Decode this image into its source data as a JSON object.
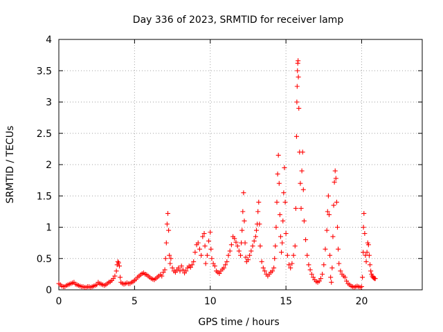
{
  "chart_data": {
    "type": "scatter",
    "title": "Day 336 of 2023, SRMTID for receiver lamp",
    "xlabel": "GPS time / hours",
    "ylabel": "SRMTID / TECUs",
    "xlim": [
      0,
      24
    ],
    "ylim": [
      0,
      4
    ],
    "xticks": [
      0,
      5,
      10,
      15,
      20
    ],
    "yticks": [
      0,
      0.5,
      1,
      1.5,
      2,
      2.5,
      3,
      3.5,
      4
    ],
    "xtick_labels": [
      "0",
      "5",
      "10",
      "15",
      "20"
    ],
    "ytick_labels": [
      "0",
      "0.5",
      "1",
      "1.5",
      "2",
      "2.5",
      "3",
      "3.5",
      "4"
    ],
    "grid": true,
    "marker": "plus",
    "color": "#ff0000",
    "series": [
      {
        "name": "SRMTID",
        "points": [
          [
            0.0,
            0.1
          ],
          [
            0.1,
            0.08
          ],
          [
            0.2,
            0.06
          ],
          [
            0.3,
            0.05
          ],
          [
            0.4,
            0.05
          ],
          [
            0.5,
            0.07
          ],
          [
            0.6,
            0.08
          ],
          [
            0.7,
            0.09
          ],
          [
            0.8,
            0.1
          ],
          [
            0.9,
            0.11
          ],
          [
            1.0,
            0.12
          ],
          [
            1.1,
            0.09
          ],
          [
            1.2,
            0.08
          ],
          [
            1.3,
            0.07
          ],
          [
            1.4,
            0.06
          ],
          [
            1.5,
            0.05
          ],
          [
            1.6,
            0.05
          ],
          [
            1.7,
            0.04
          ],
          [
            1.8,
            0.04
          ],
          [
            1.9,
            0.05
          ],
          [
            2.0,
            0.05
          ],
          [
            2.1,
            0.04
          ],
          [
            2.2,
            0.05
          ],
          [
            2.3,
            0.06
          ],
          [
            2.4,
            0.07
          ],
          [
            2.5,
            0.08
          ],
          [
            2.6,
            0.12
          ],
          [
            2.7,
            0.1
          ],
          [
            2.8,
            0.09
          ],
          [
            2.9,
            0.08
          ],
          [
            3.0,
            0.07
          ],
          [
            3.1,
            0.08
          ],
          [
            3.2,
            0.1
          ],
          [
            3.3,
            0.12
          ],
          [
            3.4,
            0.13
          ],
          [
            3.5,
            0.15
          ],
          [
            3.6,
            0.18
          ],
          [
            3.7,
            0.22
          ],
          [
            3.8,
            0.3
          ],
          [
            3.85,
            0.4
          ],
          [
            3.9,
            0.45
          ],
          [
            3.95,
            0.43
          ],
          [
            4.0,
            0.38
          ],
          [
            4.05,
            0.2
          ],
          [
            4.1,
            0.12
          ],
          [
            4.2,
            0.1
          ],
          [
            4.3,
            0.09
          ],
          [
            4.4,
            0.1
          ],
          [
            4.5,
            0.11
          ],
          [
            4.6,
            0.1
          ],
          [
            4.7,
            0.1
          ],
          [
            4.8,
            0.12
          ],
          [
            4.9,
            0.13
          ],
          [
            5.0,
            0.15
          ],
          [
            5.1,
            0.17
          ],
          [
            5.2,
            0.2
          ],
          [
            5.3,
            0.22
          ],
          [
            5.4,
            0.24
          ],
          [
            5.5,
            0.26
          ],
          [
            5.6,
            0.27
          ],
          [
            5.7,
            0.25
          ],
          [
            5.8,
            0.24
          ],
          [
            5.9,
            0.22
          ],
          [
            6.0,
            0.2
          ],
          [
            6.1,
            0.18
          ],
          [
            6.2,
            0.17
          ],
          [
            6.3,
            0.16
          ],
          [
            6.4,
            0.18
          ],
          [
            6.5,
            0.2
          ],
          [
            6.6,
            0.22
          ],
          [
            6.7,
            0.24
          ],
          [
            6.8,
            0.22
          ],
          [
            6.9,
            0.28
          ],
          [
            7.0,
            0.32
          ],
          [
            7.05,
            0.5
          ],
          [
            7.1,
            0.75
          ],
          [
            7.15,
            1.05
          ],
          [
            7.2,
            1.22
          ],
          [
            7.25,
            0.95
          ],
          [
            7.3,
            0.55
          ],
          [
            7.35,
            0.42
          ],
          [
            7.4,
            0.5
          ],
          [
            7.5,
            0.35
          ],
          [
            7.6,
            0.3
          ],
          [
            7.7,
            0.28
          ],
          [
            7.8,
            0.32
          ],
          [
            7.9,
            0.35
          ],
          [
            8.0,
            0.3
          ],
          [
            8.1,
            0.38
          ],
          [
            8.2,
            0.32
          ],
          [
            8.3,
            0.27
          ],
          [
            8.4,
            0.3
          ],
          [
            8.5,
            0.35
          ],
          [
            8.6,
            0.38
          ],
          [
            8.7,
            0.36
          ],
          [
            8.8,
            0.4
          ],
          [
            8.9,
            0.45
          ],
          [
            9.0,
            0.6
          ],
          [
            9.1,
            0.72
          ],
          [
            9.2,
            0.75
          ],
          [
            9.3,
            0.65
          ],
          [
            9.4,
            0.55
          ],
          [
            9.5,
            0.85
          ],
          [
            9.6,
            0.9
          ],
          [
            9.65,
            0.7
          ],
          [
            9.7,
            0.42
          ],
          [
            9.8,
            0.55
          ],
          [
            9.9,
            0.78
          ],
          [
            10.0,
            0.92
          ],
          [
            10.05,
            0.65
          ],
          [
            10.1,
            0.5
          ],
          [
            10.2,
            0.42
          ],
          [
            10.3,
            0.38
          ],
          [
            10.4,
            0.3
          ],
          [
            10.5,
            0.28
          ],
          [
            10.6,
            0.26
          ],
          [
            10.7,
            0.3
          ],
          [
            10.8,
            0.33
          ],
          [
            10.9,
            0.35
          ],
          [
            11.0,
            0.4
          ],
          [
            11.1,
            0.45
          ],
          [
            11.2,
            0.55
          ],
          [
            11.3,
            0.62
          ],
          [
            11.4,
            0.72
          ],
          [
            11.5,
            0.85
          ],
          [
            11.6,
            0.82
          ],
          [
            11.7,
            0.76
          ],
          [
            11.8,
            0.7
          ],
          [
            11.9,
            0.62
          ],
          [
            12.0,
            0.55
          ],
          [
            12.05,
            0.75
          ],
          [
            12.1,
            0.95
          ],
          [
            12.15,
            1.25
          ],
          [
            12.2,
            1.55
          ],
          [
            12.25,
            1.1
          ],
          [
            12.3,
            0.75
          ],
          [
            12.35,
            0.52
          ],
          [
            12.4,
            0.45
          ],
          [
            12.5,
            0.48
          ],
          [
            12.6,
            0.55
          ],
          [
            12.7,
            0.62
          ],
          [
            12.8,
            0.7
          ],
          [
            12.9,
            0.78
          ],
          [
            13.0,
            0.85
          ],
          [
            13.05,
            0.95
          ],
          [
            13.1,
            1.05
          ],
          [
            13.15,
            1.25
          ],
          [
            13.2,
            1.4
          ],
          [
            13.25,
            1.05
          ],
          [
            13.3,
            0.7
          ],
          [
            13.4,
            0.45
          ],
          [
            13.5,
            0.35
          ],
          [
            13.6,
            0.3
          ],
          [
            13.7,
            0.25
          ],
          [
            13.8,
            0.22
          ],
          [
            13.9,
            0.25
          ],
          [
            14.0,
            0.28
          ],
          [
            14.1,
            0.3
          ],
          [
            14.2,
            0.35
          ],
          [
            14.25,
            0.5
          ],
          [
            14.3,
            0.7
          ],
          [
            14.35,
            1.0
          ],
          [
            14.4,
            1.4
          ],
          [
            14.45,
            1.85
          ],
          [
            14.5,
            2.15
          ],
          [
            14.55,
            1.7
          ],
          [
            14.6,
            1.2
          ],
          [
            14.65,
            0.85
          ],
          [
            14.7,
            0.6
          ],
          [
            14.75,
            0.75
          ],
          [
            14.8,
            1.1
          ],
          [
            14.85,
            1.55
          ],
          [
            14.9,
            1.95
          ],
          [
            14.95,
            1.4
          ],
          [
            15.0,
            0.9
          ],
          [
            15.1,
            0.55
          ],
          [
            15.2,
            0.4
          ],
          [
            15.3,
            0.35
          ],
          [
            15.4,
            0.42
          ],
          [
            15.5,
            0.55
          ],
          [
            15.6,
            0.7
          ],
          [
            15.65,
            1.3
          ],
          [
            15.7,
            2.45
          ],
          [
            15.72,
            3.0
          ],
          [
            15.74,
            3.25
          ],
          [
            15.76,
            3.5
          ],
          [
            15.78,
            3.62
          ],
          [
            15.8,
            3.66
          ],
          [
            15.82,
            3.4
          ],
          [
            15.85,
            2.9
          ],
          [
            15.9,
            2.2
          ],
          [
            15.95,
            1.7
          ],
          [
            16.0,
            1.3
          ],
          [
            16.05,
            1.9
          ],
          [
            16.1,
            2.2
          ],
          [
            16.15,
            1.6
          ],
          [
            16.2,
            1.1
          ],
          [
            16.3,
            0.8
          ],
          [
            16.4,
            0.55
          ],
          [
            16.5,
            0.4
          ],
          [
            16.6,
            0.32
          ],
          [
            16.7,
            0.25
          ],
          [
            16.8,
            0.2
          ],
          [
            16.9,
            0.16
          ],
          [
            17.0,
            0.13
          ],
          [
            17.1,
            0.12
          ],
          [
            17.2,
            0.14
          ],
          [
            17.3,
            0.18
          ],
          [
            17.4,
            0.25
          ],
          [
            17.5,
            0.4
          ],
          [
            17.6,
            0.65
          ],
          [
            17.7,
            0.95
          ],
          [
            17.75,
            1.25
          ],
          [
            17.8,
            1.5
          ],
          [
            17.85,
            1.2
          ],
          [
            17.9,
            0.55
          ],
          [
            17.95,
            0.2
          ],
          [
            18.0,
            0.12
          ],
          [
            18.05,
            0.35
          ],
          [
            18.1,
            0.85
          ],
          [
            18.15,
            1.35
          ],
          [
            18.2,
            1.72
          ],
          [
            18.25,
            1.9
          ],
          [
            18.3,
            1.78
          ],
          [
            18.35,
            1.4
          ],
          [
            18.4,
            1.0
          ],
          [
            18.45,
            0.65
          ],
          [
            18.5,
            0.42
          ],
          [
            18.6,
            0.3
          ],
          [
            18.7,
            0.25
          ],
          [
            18.8,
            0.22
          ],
          [
            18.9,
            0.2
          ],
          [
            19.0,
            0.14
          ],
          [
            19.1,
            0.1
          ],
          [
            19.2,
            0.08
          ],
          [
            19.3,
            0.06
          ],
          [
            19.4,
            0.05
          ],
          [
            19.5,
            0.04
          ],
          [
            19.6,
            0.05
          ],
          [
            19.7,
            0.06
          ],
          [
            19.8,
            0.05
          ],
          [
            19.9,
            0.04
          ],
          [
            20.0,
            0.05
          ],
          [
            20.05,
            0.2
          ],
          [
            20.1,
            0.6
          ],
          [
            20.12,
            1.0
          ],
          [
            20.15,
            1.22
          ],
          [
            20.2,
            0.9
          ],
          [
            20.25,
            0.55
          ],
          [
            20.3,
            0.45
          ],
          [
            20.35,
            0.6
          ],
          [
            20.4,
            0.75
          ],
          [
            20.45,
            0.72
          ],
          [
            20.5,
            0.55
          ],
          [
            20.55,
            0.4
          ],
          [
            20.6,
            0.3
          ],
          [
            20.65,
            0.25
          ],
          [
            20.7,
            0.22
          ],
          [
            20.75,
            0.2
          ],
          [
            20.8,
            0.19
          ],
          [
            20.85,
            0.18
          ],
          [
            20.9,
            0.18
          ]
        ]
      }
    ]
  }
}
